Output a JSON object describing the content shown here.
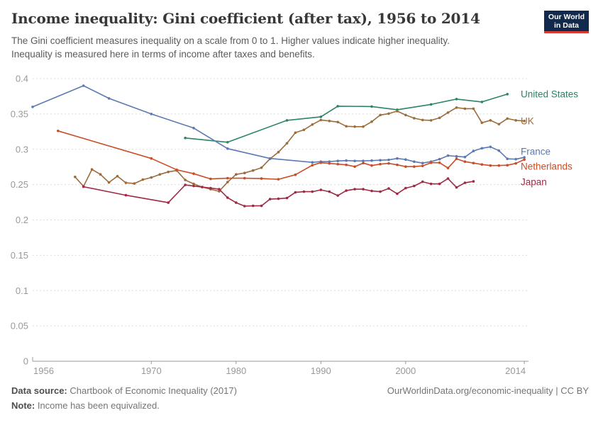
{
  "header": {
    "title": "Income inequality: Gini coefficient (after tax), 1956 to 2014",
    "subtitle_line1": "The Gini coefficient measures inequality on a scale from 0 to 1. Higher values indicate higher inequality.",
    "subtitle_line2": "Inequality is measured here in terms of income after taxes and benefits.",
    "logo": {
      "line1": "Our World",
      "line2": "in Data",
      "bg_color": "#12294e",
      "accent_color": "#d93b33"
    }
  },
  "footer": {
    "datasource_label": "Data source:",
    "datasource_text": " Chartbook of Economic Inequality (2017)",
    "link_text": "OurWorldinData.org/economic-inequality | CC BY",
    "note_label": "Note:",
    "note_text": " Income has been equivalized."
  },
  "chart_data": {
    "type": "line",
    "title": "Income inequality: Gini coefficient (after tax), 1956 to 2014",
    "xlabel": "",
    "ylabel": "Gini coefficient (after tax)",
    "x_range": [
      1956,
      2014
    ],
    "y_range": [
      0,
      0.4
    ],
    "grid": "horizontal-dashed",
    "legend_position": "right-edge-labels",
    "x_ticks": [
      1956,
      1970,
      1980,
      1990,
      2000,
      2014
    ],
    "y_ticks": [
      {
        "v": 0.4,
        "label": "0.4"
      },
      {
        "v": 0.35,
        "label": "0.35"
      },
      {
        "v": 0.3,
        "label": "0.3"
      },
      {
        "v": 0.25,
        "label": "0.25"
      },
      {
        "v": 0.2,
        "label": "0.2"
      },
      {
        "v": 0.15,
        "label": "0.15"
      },
      {
        "v": 0.1,
        "label": "0.1"
      },
      {
        "v": 0.05,
        "label": "0.05"
      },
      {
        "v": 0,
        "label": "0"
      }
    ],
    "axis_color": "#9a9a9a",
    "grid_color": "#dcdcdc",
    "tick_label_color": "#999999",
    "series": [
      {
        "name": "United States",
        "color": "#2C8465",
        "points": [
          [
            1974,
            0.316
          ],
          [
            1979,
            0.31
          ],
          [
            1986,
            0.341
          ],
          [
            1990,
            0.346
          ],
          [
            1992,
            0.361
          ],
          [
            1996,
            0.3605
          ],
          [
            1999,
            0.356
          ],
          [
            2003,
            0.3635
          ],
          [
            2006,
            0.371
          ],
          [
            2009,
            0.367
          ],
          [
            2012,
            0.378
          ]
        ]
      },
      {
        "name": "UK",
        "color": "#9C6C3B",
        "points": [
          [
            1961,
            0.261
          ],
          [
            1962,
            0.2475
          ],
          [
            1963,
            0.2715
          ],
          [
            1964,
            0.2645
          ],
          [
            1965,
            0.253
          ],
          [
            1966,
            0.262
          ],
          [
            1967,
            0.2525
          ],
          [
            1968,
            0.2515
          ],
          [
            1969,
            0.257
          ],
          [
            1970,
            0.26
          ],
          [
            1971,
            0.2645
          ],
          [
            1972,
            0.268
          ],
          [
            1973,
            0.27
          ],
          [
            1974,
            0.2565
          ],
          [
            1975,
            0.251
          ],
          [
            1976,
            0.2465
          ],
          [
            1977,
            0.2435
          ],
          [
            1978,
            0.2405
          ],
          [
            1979,
            0.2535
          ],
          [
            1980,
            0.2645
          ],
          [
            1981,
            0.2665
          ],
          [
            1982,
            0.27
          ],
          [
            1983,
            0.274
          ],
          [
            1984,
            0.2865
          ],
          [
            1985,
            0.296
          ],
          [
            1986,
            0.3085
          ],
          [
            1987,
            0.3235
          ],
          [
            1988,
            0.3275
          ],
          [
            1989,
            0.335
          ],
          [
            1990,
            0.3415
          ],
          [
            1991,
            0.34
          ],
          [
            1992,
            0.3385
          ],
          [
            1993,
            0.3325
          ],
          [
            1994,
            0.332
          ],
          [
            1995,
            0.332
          ],
          [
            1996,
            0.339
          ],
          [
            1997,
            0.3485
          ],
          [
            1998,
            0.3505
          ],
          [
            1999,
            0.354
          ],
          [
            2000,
            0.3485
          ],
          [
            2001,
            0.344
          ],
          [
            2002,
            0.3415
          ],
          [
            2003,
            0.341
          ],
          [
            2004,
            0.3445
          ],
          [
            2005,
            0.352
          ],
          [
            2006,
            0.359
          ],
          [
            2007,
            0.3575
          ],
          [
            2008,
            0.3575
          ],
          [
            2009,
            0.3375
          ],
          [
            2010,
            0.341
          ],
          [
            2011,
            0.3355
          ],
          [
            2012,
            0.3435
          ],
          [
            2013,
            0.341
          ],
          [
            2014,
            0.34
          ]
        ]
      },
      {
        "name": "France",
        "color": "#5B79B2",
        "points": [
          [
            1956,
            0.36
          ],
          [
            1962,
            0.39
          ],
          [
            1965,
            0.372
          ],
          [
            1970,
            0.35
          ],
          [
            1975,
            0.33
          ],
          [
            1979,
            0.301
          ],
          [
            1984,
            0.287
          ],
          [
            1989,
            0.2815
          ],
          [
            1990,
            0.2825
          ],
          [
            1991,
            0.2825
          ],
          [
            1992,
            0.2835
          ],
          [
            1993,
            0.284
          ],
          [
            1994,
            0.2835
          ],
          [
            1995,
            0.2835
          ],
          [
            1996,
            0.284
          ],
          [
            1997,
            0.2845
          ],
          [
            1998,
            0.285
          ],
          [
            1999,
            0.287
          ],
          [
            2000,
            0.2855
          ],
          [
            2001,
            0.2825
          ],
          [
            2002,
            0.2805
          ],
          [
            2003,
            0.2825
          ],
          [
            2004,
            0.286
          ],
          [
            2005,
            0.291
          ],
          [
            2006,
            0.29
          ],
          [
            2007,
            0.289
          ],
          [
            2008,
            0.2975
          ],
          [
            2009,
            0.3015
          ],
          [
            2010,
            0.3035
          ],
          [
            2011,
            0.298
          ],
          [
            2012,
            0.2865
          ],
          [
            2013,
            0.286
          ],
          [
            2014,
            0.2885
          ]
        ]
      },
      {
        "name": "Netherlands",
        "color": "#C84E28",
        "points": [
          [
            1959,
            0.326
          ],
          [
            1970,
            0.287
          ],
          [
            1973,
            0.271
          ],
          [
            1975,
            0.2655
          ],
          [
            1977,
            0.258
          ],
          [
            1979,
            0.259
          ],
          [
            1981,
            0.259
          ],
          [
            1983,
            0.2585
          ],
          [
            1985,
            0.2575
          ],
          [
            1987,
            0.264
          ],
          [
            1989,
            0.2775
          ],
          [
            1990,
            0.281
          ],
          [
            1991,
            0.28
          ],
          [
            1992,
            0.279
          ],
          [
            1993,
            0.278
          ],
          [
            1994,
            0.2755
          ],
          [
            1995,
            0.2805
          ],
          [
            1996,
            0.277
          ],
          [
            1997,
            0.279
          ],
          [
            1998,
            0.28
          ],
          [
            1999,
            0.278
          ],
          [
            2000,
            0.2755
          ],
          [
            2001,
            0.2755
          ],
          [
            2002,
            0.2765
          ],
          [
            2003,
            0.281
          ],
          [
            2004,
            0.281
          ],
          [
            2005,
            0.2735
          ],
          [
            2006,
            0.2865
          ],
          [
            2007,
            0.2825
          ],
          [
            2008,
            0.2805
          ],
          [
            2009,
            0.2785
          ],
          [
            2010,
            0.277
          ],
          [
            2011,
            0.277
          ],
          [
            2012,
            0.2775
          ],
          [
            2013,
            0.28
          ],
          [
            2014,
            0.2855
          ]
        ]
      },
      {
        "name": "Japan",
        "color": "#9E2A46",
        "points": [
          [
            1962,
            0.247
          ],
          [
            1967,
            0.235
          ],
          [
            1972,
            0.2245
          ],
          [
            1974,
            0.2495
          ],
          [
            1975,
            0.248
          ],
          [
            1976,
            0.2465
          ],
          [
            1977,
            0.245
          ],
          [
            1978,
            0.2435
          ],
          [
            1979,
            0.2315
          ],
          [
            1980,
            0.2245
          ],
          [
            1981,
            0.2195
          ],
          [
            1982,
            0.22
          ],
          [
            1983,
            0.22
          ],
          [
            1984,
            0.2295
          ],
          [
            1985,
            0.23
          ],
          [
            1986,
            0.231
          ],
          [
            1987,
            0.239
          ],
          [
            1988,
            0.24
          ],
          [
            1989,
            0.24
          ],
          [
            1990,
            0.2425
          ],
          [
            1991,
            0.24
          ],
          [
            1992,
            0.2345
          ],
          [
            1993,
            0.2415
          ],
          [
            1994,
            0.2435
          ],
          [
            1995,
            0.2435
          ],
          [
            1996,
            0.241
          ],
          [
            1997,
            0.24
          ],
          [
            1998,
            0.2445
          ],
          [
            1999,
            0.237
          ],
          [
            2000,
            0.245
          ],
          [
            2001,
            0.248
          ],
          [
            2002,
            0.254
          ],
          [
            2003,
            0.251
          ],
          [
            2004,
            0.251
          ],
          [
            2005,
            0.2585
          ],
          [
            2006,
            0.246
          ],
          [
            2007,
            0.2525
          ],
          [
            2008,
            0.2545
          ]
        ]
      }
    ]
  }
}
